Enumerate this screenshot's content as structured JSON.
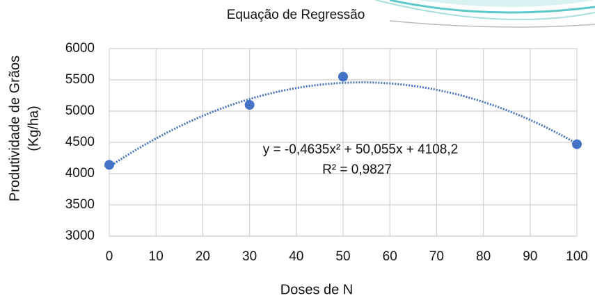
{
  "chart_data": {
    "type": "scatter",
    "title": "Equação de Regressão",
    "x_label": "Doses de N",
    "y_label": [
      "Produtividade de Grãos",
      "(Kg/ha)"
    ],
    "series": [
      {
        "x": [
          0,
          30,
          50,
          100
        ],
        "values": [
          4140,
          5100,
          5550,
          4470
        ],
        "color": "#4472c4"
      }
    ],
    "trendline": {
      "coefficients": [
        -0.4635,
        50.055,
        4108.2
      ],
      "color": "#4472c4",
      "equation": "y = -0,4635x² + 50,055x + 4108,2",
      "r_squared": "R² = 0,9827"
    },
    "xlim": [
      0,
      100
    ],
    "xticks": [
      0,
      10,
      20,
      30,
      40,
      50,
      60,
      70,
      80,
      90,
      100
    ],
    "ylim": [
      3000,
      6000
    ],
    "yticks": [
      3000,
      3500,
      4000,
      4500,
      5000,
      5500,
      6000
    ],
    "grid": true
  }
}
